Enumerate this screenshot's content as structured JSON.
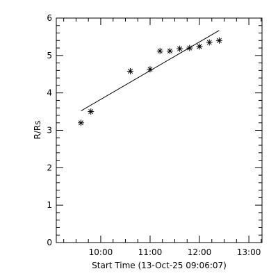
{
  "chart_data": {
    "type": "scatter",
    "xlabel": "Start Time (13-Oct-25 09:06:07)",
    "ylabel": "R/Rs",
    "xlim": [
      "09:06",
      "13:16"
    ],
    "ylim": [
      0,
      6
    ],
    "x_ticks": [
      "10:00",
      "11:00",
      "12:00",
      "13:00"
    ],
    "y_ticks": [
      0,
      1,
      2,
      3,
      4,
      5,
      6
    ],
    "grid": false,
    "legend": "none",
    "marker": "asterisk",
    "colors": {
      "foreground": "#000000",
      "background": "#ffffff"
    },
    "series": [
      {
        "points": [
          {
            "x": "09:36",
            "y": 3.2
          },
          {
            "x": "09:48",
            "y": 3.5
          },
          {
            "x": "10:36",
            "y": 4.58
          },
          {
            "x": "11:00",
            "y": 4.63
          },
          {
            "x": "11:12",
            "y": 5.12
          },
          {
            "x": "11:24",
            "y": 5.12
          },
          {
            "x": "11:36",
            "y": 5.18
          },
          {
            "x": "11:48",
            "y": 5.2
          },
          {
            "x": "12:00",
            "y": 5.24
          },
          {
            "x": "12:12",
            "y": 5.35
          },
          {
            "x": "12:24",
            "y": 5.4
          }
        ]
      }
    ],
    "fit_line": {
      "points": [
        {
          "x": "09:36",
          "y": 3.52
        },
        {
          "x": "12:24",
          "y": 5.67
        }
      ]
    }
  }
}
